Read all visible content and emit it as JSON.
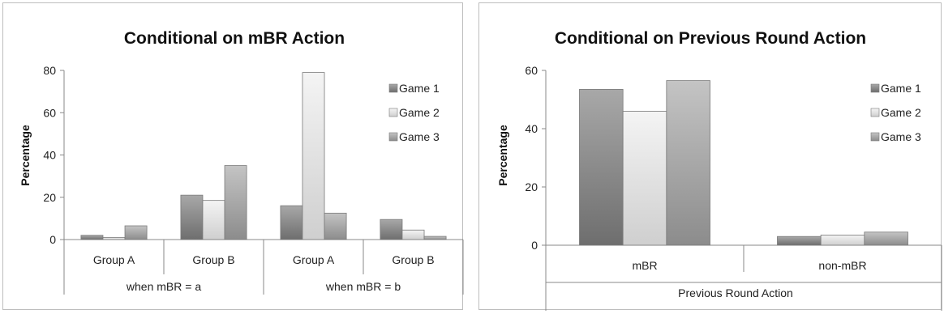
{
  "chart_data": [
    {
      "type": "bar",
      "title": "Conditional on mBR Action",
      "xlabel": "",
      "ylabel": "Percentage",
      "ylim": [
        0,
        80
      ],
      "yticks": [
        "0",
        "20",
        "40",
        "60",
        "80"
      ],
      "categories": [
        "Group A",
        "Group B",
        "Group A",
        "Group B"
      ],
      "groups": [
        "when mBR = a",
        "when mBR = b"
      ],
      "series": [
        {
          "name": "Game 1",
          "values": [
            2,
            21,
            16,
            9.5
          ]
        },
        {
          "name": "Game 2",
          "values": [
            1,
            18.5,
            79,
            4.5
          ]
        },
        {
          "name": "Game 3",
          "values": [
            6.5,
            35,
            12.5,
            1.5
          ]
        }
      ],
      "legend": "right",
      "grid": false
    },
    {
      "type": "bar",
      "title": "Conditional on Previous Round Action",
      "xlabel": "Previous Round Action",
      "ylabel": "Percentage",
      "ylim": [
        0,
        60
      ],
      "yticks": [
        "0",
        "20",
        "40",
        "60"
      ],
      "categories": [
        "mBR",
        "non-mBR"
      ],
      "series": [
        {
          "name": "Game 1",
          "values": [
            53.5,
            3
          ]
        },
        {
          "name": "Game 2",
          "values": [
            46,
            3.5
          ]
        },
        {
          "name": "Game 3",
          "values": [
            56.5,
            4.5
          ]
        }
      ],
      "legend": "right",
      "grid": false
    }
  ],
  "colors": {
    "game1": "#8a8a8a",
    "game2": "#e4e4e4",
    "game3": "#a9a9a9"
  }
}
